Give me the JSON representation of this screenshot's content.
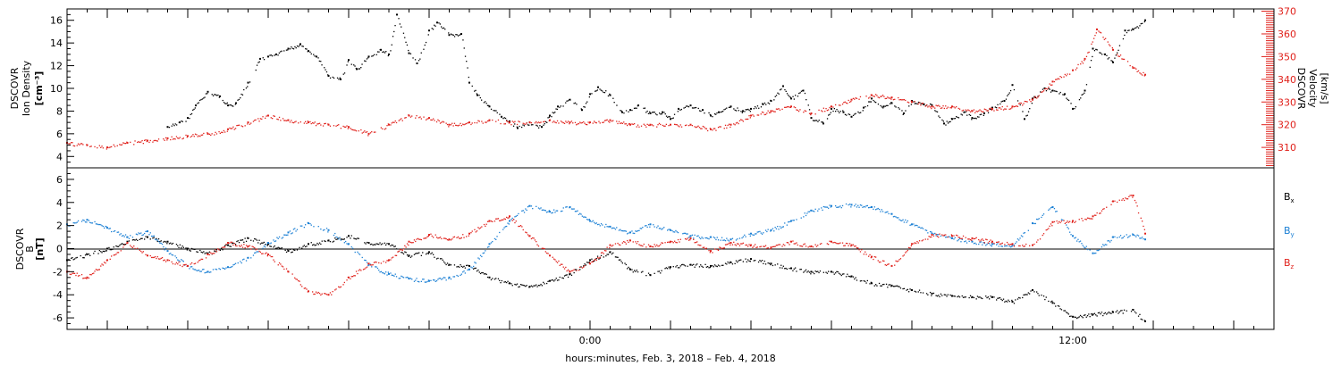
{
  "chart_data": [
    {
      "type": "scatter",
      "panel": "top",
      "ylabel_lines": [
        "DSCOVR",
        "Ion  Density",
        "[cm⁻³]"
      ],
      "ylim": [
        3,
        17
      ],
      "yticks": [
        4,
        6,
        8,
        10,
        12,
        14,
        16
      ],
      "y2label_lines": [
        "DSCOVR",
        "Velocity",
        "[km/s]"
      ],
      "y2lim": [
        301,
        371
      ],
      "y2ticks": [
        310,
        320,
        330,
        340,
        350,
        360,
        370
      ],
      "y2_color": "#e0211b",
      "xlim_hours": [
        -13,
        17
      ],
      "series": [
        {
          "axis": "left",
          "color": "#000000",
          "x": [
            -10.5,
            -10.2,
            -10,
            -9.8,
            -9.5,
            -9.2,
            -9,
            -8.8,
            -8.5,
            -8.2,
            -8,
            -7.8,
            -7.5,
            -7.2,
            -7,
            -6.8,
            -6.5,
            -6.2,
            -6,
            -5.8,
            -5.5,
            -5.2,
            -5,
            -4.8,
            -4.5,
            -4.3,
            -4,
            -3.8,
            -3.5,
            -3.2,
            -3,
            -2.8,
            -2.5,
            -2.2,
            -2,
            -1.8,
            -1.5,
            -1.2,
            -1,
            -0.8,
            -0.5,
            -0.2,
            0,
            0.2,
            0.5,
            0.8,
            1,
            1.2,
            1.5,
            1.8,
            2,
            2.2,
            2.5,
            2.8,
            3,
            3.2,
            3.5,
            3.8,
            4,
            4.3,
            4.5,
            4.8,
            5,
            5.3,
            5.5,
            5.8,
            6,
            6.3,
            6.5,
            6.8,
            7,
            7.3,
            7.5,
            7.8,
            8,
            8.3,
            8.5,
            8.8,
            9,
            9.3,
            9.5,
            9.8,
            10,
            10.3,
            10.5,
            10.8,
            11,
            11.3,
            11.5,
            11.8,
            12,
            12.3,
            12.5,
            12.8,
            13,
            13.3,
            13.5,
            13.8
          ],
          "y": [
            6.6,
            7,
            7.4,
            8.5,
            9.7,
            9.3,
            8.5,
            8.7,
            10.5,
            12.6,
            12.8,
            13,
            13.5,
            13.9,
            13.3,
            12.8,
            11.1,
            10.8,
            12.5,
            11.7,
            12.8,
            13.4,
            13,
            16.5,
            13.1,
            12.2,
            15.1,
            15.8,
            14.7,
            14.8,
            10.5,
            9.4,
            8.4,
            7.5,
            7.1,
            6.5,
            7,
            6.6,
            7.6,
            8.4,
            9,
            8.1,
            9.5,
            10.1,
            9.4,
            7.9,
            8.1,
            8.5,
            7.8,
            7.9,
            7.3,
            8.2,
            8.5,
            8.1,
            7.6,
            7.9,
            8.4,
            8,
            8.2,
            8.6,
            8.9,
            10.2,
            9.1,
            9.8,
            7.4,
            6.9,
            8.2,
            7.9,
            7.5,
            8.3,
            9.1,
            8.4,
            8.7,
            7.8,
            8.9,
            8.6,
            8.5,
            6.9,
            7.3,
            7.9,
            7.4,
            7.8,
            8.3,
            8.9,
            10.3,
            7.3,
            9.1,
            10,
            9.8,
            9.5,
            8.2,
            9.8,
            13.5,
            13,
            12.3,
            15.1,
            15.2,
            16
          ]
        },
        {
          "axis": "right",
          "color": "#e0211b",
          "x": [
            -13,
            -12.5,
            -12,
            -11.5,
            -11,
            -10.5,
            -10,
            -9.5,
            -9,
            -8.5,
            -8,
            -7.5,
            -7,
            -6.5,
            -6,
            -5.5,
            -5,
            -4.5,
            -4,
            -3.5,
            -3,
            -2.5,
            -2,
            -1.5,
            -1,
            -0.5,
            0,
            0.5,
            1,
            1.5,
            2,
            2.5,
            3,
            3.5,
            4,
            4.5,
            5,
            5.5,
            6,
            6.5,
            7,
            7.5,
            8,
            8.5,
            9,
            9.5,
            10,
            10.5,
            11,
            11.5,
            12,
            12.3,
            12.6,
            13,
            13.5,
            13.8
          ],
          "y": [
            312,
            311,
            310,
            312,
            313,
            314,
            315,
            316,
            318,
            321,
            324,
            322,
            321,
            320,
            319,
            316,
            320,
            324,
            323,
            320,
            321,
            322,
            321,
            321,
            322,
            321,
            321,
            322,
            320,
            320,
            320,
            320,
            318,
            320,
            324,
            326,
            328,
            325,
            328,
            331,
            333,
            332,
            330,
            328,
            328,
            326,
            327,
            328,
            331,
            339,
            344,
            349,
            362,
            353,
            345,
            342
          ]
        }
      ],
      "note": ""
    },
    {
      "type": "scatter",
      "panel": "bottom",
      "ylabel_lines": [
        "DSCOVR",
        "B",
        "[nT]"
      ],
      "ylim": [
        -7,
        7
      ],
      "yticks": [
        -6,
        -4,
        -2,
        0,
        2,
        4,
        6
      ],
      "zero_line": true,
      "xlim_hours": [
        -13,
        17
      ],
      "xticks_hours": [
        -12,
        -10,
        -8,
        -6,
        -4,
        -2,
        0,
        2,
        4,
        6,
        8,
        10,
        12,
        14,
        16
      ],
      "xtick_labels": [
        {
          "hour": 0,
          "label": "0:00"
        },
        {
          "hour": 12,
          "label": "12:00"
        }
      ],
      "xlabel": "hours:minutes, Feb.  3, 2018 – Feb.  4, 2018",
      "legend_placement": "right",
      "series": [
        {
          "name": "Bx",
          "name_main": "B",
          "name_sub": "x",
          "color": "#000000",
          "x": [
            -13,
            -12.5,
            -12,
            -11.5,
            -11,
            -10.5,
            -10,
            -9.5,
            -9,
            -8.5,
            -8,
            -7.5,
            -7,
            -6.5,
            -6,
            -5.5,
            -5,
            -4.5,
            -4,
            -3.5,
            -3,
            -2.5,
            -2,
            -1.5,
            -1,
            -0.5,
            0,
            0.5,
            1,
            1.5,
            2,
            2.5,
            3,
            3.5,
            4,
            4.5,
            5,
            5.5,
            6,
            6.5,
            7,
            7.5,
            8,
            8.5,
            9,
            9.5,
            10,
            10.5,
            11,
            11.5,
            12,
            12.5,
            13,
            13.5,
            13.8
          ],
          "y": [
            -1,
            -0.5,
            0,
            0.6,
            1,
            0.6,
            0,
            -0.4,
            0.3,
            0.9,
            0.4,
            -0.2,
            0.4,
            0.7,
            1.1,
            0.5,
            0.4,
            -0.6,
            -0.3,
            -1.4,
            -1.5,
            -2.5,
            -3,
            -3.3,
            -2.8,
            -2.2,
            -1,
            -0.3,
            -1.8,
            -2.3,
            -1.6,
            -1.4,
            -1.5,
            -1.2,
            -0.9,
            -1.3,
            -1.7,
            -2,
            -2,
            -2.4,
            -3,
            -3.2,
            -3.6,
            -3.9,
            -4.1,
            -4.2,
            -4.2,
            -4.6,
            -3.6,
            -4.7,
            -5.9,
            -5.7,
            -5.5,
            -5.3,
            -6.3
          ]
        },
        {
          "name": "By",
          "name_main": "B",
          "name_sub": "y",
          "color": "#1a7fd4",
          "x": [
            -13,
            -12.5,
            -12,
            -11.5,
            -11,
            -10.5,
            -10,
            -9.5,
            -9,
            -8.5,
            -8,
            -7.5,
            -7,
            -6.5,
            -6,
            -5.5,
            -5,
            -4.5,
            -4,
            -3.5,
            -3,
            -2.5,
            -2,
            -1.5,
            -1,
            -0.5,
            0,
            0.5,
            1,
            1.5,
            2,
            2.5,
            3,
            3.5,
            4,
            4.5,
            5,
            5.5,
            6,
            6.5,
            7,
            7.5,
            8,
            8.5,
            9,
            9.5,
            10,
            10.5,
            11,
            11.5,
            12,
            12.5,
            13,
            13.5,
            13.8
          ],
          "y": [
            2.1,
            2.5,
            1.8,
            1,
            1.5,
            -0.2,
            -1.5,
            -2,
            -1.6,
            -0.8,
            0.5,
            1.4,
            2.2,
            1.6,
            0.4,
            -1.4,
            -2.2,
            -2.6,
            -2.8,
            -2.5,
            -1.8,
            0.4,
            2.4,
            3.7,
            3.2,
            3.6,
            2.4,
            1.9,
            1.4,
            2.1,
            1.6,
            1.1,
            1,
            0.8,
            1.3,
            1.6,
            2.4,
            3.3,
            3.7,
            3.8,
            3.6,
            3,
            2.1,
            1.3,
            0.9,
            0.6,
            0.4,
            0.3,
            2.2,
            3.6,
            1.1,
            -0.4,
            1,
            1.2,
            0.8
          ]
        },
        {
          "name": "Bz",
          "name_main": "B",
          "name_sub": "z",
          "color": "#e0211b",
          "x": [
            -13,
            -12.5,
            -12,
            -11.5,
            -11,
            -10.5,
            -10,
            -9.5,
            -9,
            -8.5,
            -8,
            -7.5,
            -7,
            -6.5,
            -6,
            -5.5,
            -5,
            -4.5,
            -4,
            -3.5,
            -3,
            -2.5,
            -2,
            -1.5,
            -1,
            -0.5,
            0,
            0.5,
            1,
            1.5,
            2,
            2.5,
            3,
            3.5,
            4,
            4.5,
            5,
            5.5,
            6,
            6.5,
            7,
            7.5,
            8,
            8.5,
            9,
            9.5,
            10,
            10.5,
            11,
            11.5,
            12,
            12.5,
            13,
            13.5,
            13.8
          ],
          "y": [
            -2,
            -2.5,
            -1,
            0.5,
            -0.6,
            -1,
            -1.5,
            -0.5,
            0.5,
            0.2,
            -0.5,
            -2,
            -3.7,
            -4,
            -2.5,
            -1.3,
            -1,
            0.6,
            1.2,
            0.8,
            1.3,
            2.4,
            2.8,
            1.1,
            -0.6,
            -2,
            -1.3,
            0.3,
            0.7,
            0.2,
            0.6,
            0.9,
            -0.2,
            0.5,
            0.3,
            0.1,
            0.6,
            0.2,
            0.6,
            0.3,
            -0.7,
            -1.5,
            0.4,
            1.2,
            1.1,
            0.9,
            0.6,
            0.4,
            0.3,
            2.3,
            2.4,
            2.8,
            4.1,
            4.6,
            1.3
          ]
        }
      ]
    }
  ]
}
